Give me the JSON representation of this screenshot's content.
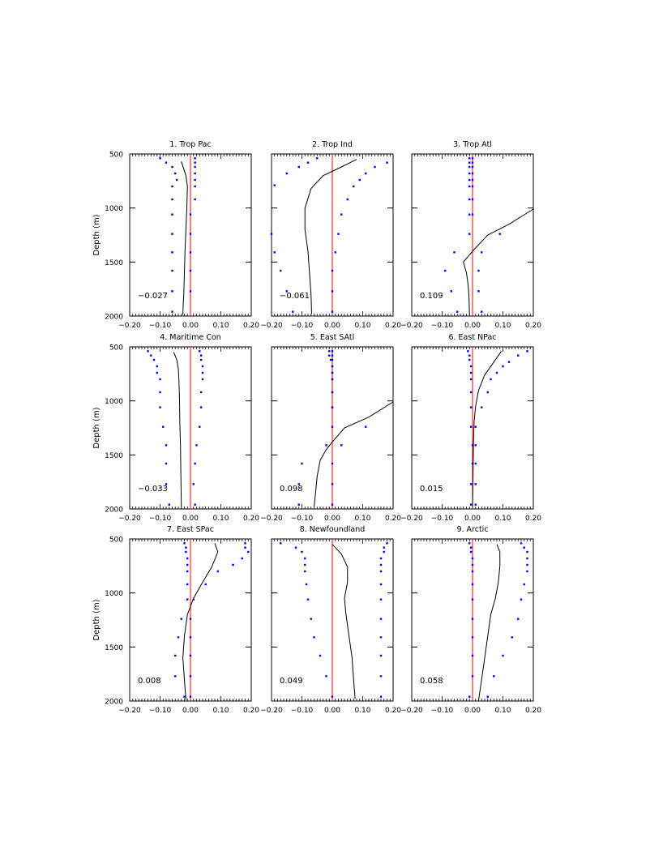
{
  "chart_data": [
    {
      "type": "line",
      "title": "1. Trop Pac",
      "ylabel": "Depth (m)",
      "ylim": [
        500,
        2000
      ],
      "xlim": [
        -0.2,
        0.2
      ],
      "xticks": [
        "−0.20",
        "−0.10",
        "0.00",
        "0.10",
        "0.20"
      ],
      "yticks": [
        "500",
        "1000",
        "1500",
        "2000"
      ],
      "annotation": "−0.027",
      "line": {
        "x": [
          -0.03,
          -0.015,
          -0.01,
          -0.012,
          -0.015,
          -0.018,
          -0.02,
          -0.022,
          -0.024,
          -0.025
        ],
        "y": [
          570,
          700,
          800,
          1000,
          1200,
          1400,
          1600,
          1800,
          1900,
          1990
        ]
      },
      "dots_left": {
        "x": [
          -0.1,
          -0.08,
          -0.06,
          -0.05,
          -0.045,
          -0.06,
          -0.06,
          -0.06,
          -0.06,
          -0.06,
          -0.06,
          -0.06,
          -0.06
        ],
        "y": [
          540,
          580,
          620,
          680,
          740,
          800,
          920,
          1060,
          1240,
          1410,
          1580,
          1770,
          1960
        ]
      },
      "dots_right": {
        "x": [
          0.015,
          0.015,
          0.015,
          0.015,
          0.015,
          0.015,
          0.015,
          0.0,
          0.0,
          0.0,
          0.0,
          0.0
        ],
        "y": [
          540,
          580,
          620,
          680,
          740,
          800,
          920,
          1060,
          1240,
          1410,
          1580,
          1770
        ]
      }
    },
    {
      "type": "line",
      "title": "2. Trop Ind",
      "ylabel": "",
      "ylim": [
        500,
        2000
      ],
      "xlim": [
        -0.2,
        0.2
      ],
      "xticks": [
        "−0.20",
        "−0.10",
        "0.00",
        "0.10",
        "0.20"
      ],
      "yticks": [
        "500",
        "1000",
        "1500",
        "2000"
      ],
      "annotation": "−0.061",
      "line": {
        "x": [
          0.08,
          0.03,
          -0.03,
          -0.07,
          -0.09,
          -0.09,
          -0.08,
          -0.075,
          -0.07,
          -0.068
        ],
        "y": [
          550,
          620,
          700,
          820,
          1000,
          1200,
          1400,
          1600,
          1800,
          1980
        ]
      },
      "dots_left": {
        "x": [
          -0.05,
          -0.08,
          -0.11,
          -0.15,
          -0.19,
          -0.2,
          -0.19,
          -0.17,
          -0.15,
          -0.13
        ],
        "y": [
          540,
          580,
          620,
          680,
          790,
          1240,
          1410,
          1580,
          1770,
          1960
        ]
      },
      "dots_right": {
        "x": [
          0.18,
          0.14,
          0.11,
          0.09,
          0.07,
          0.05,
          0.03,
          0.02,
          0.01,
          0.0,
          0.0,
          0.0
        ],
        "y": [
          580,
          620,
          680,
          740,
          800,
          920,
          1060,
          1240,
          1410,
          1580,
          1770,
          1960
        ]
      }
    },
    {
      "type": "line",
      "title": "3. Trop Atl",
      "ylabel": "",
      "ylim": [
        500,
        2000
      ],
      "xlim": [
        -0.2,
        0.2
      ],
      "xticks": [
        "−0.20",
        "−0.10",
        "0.00",
        "0.10",
        "0.20"
      ],
      "yticks": [
        "500",
        "1000",
        "1500",
        "2000"
      ],
      "annotation": "0.109",
      "line": {
        "x": [
          0.2,
          0.12,
          0.05,
          0.0,
          -0.03,
          -0.02,
          -0.015,
          -0.012,
          -0.01
        ],
        "y": [
          1010,
          1150,
          1250,
          1400,
          1500,
          1600,
          1700,
          1800,
          1990
        ]
      },
      "dots_left": {
        "x": [
          -0.01,
          -0.01,
          -0.01,
          -0.01,
          -0.01,
          -0.01,
          -0.01,
          -0.01,
          -0.01,
          -0.06,
          -0.09,
          -0.07,
          -0.05
        ],
        "y": [
          540,
          580,
          620,
          680,
          740,
          800,
          920,
          1060,
          1240,
          1410,
          1580,
          1770,
          1960
        ]
      },
      "dots_right": {
        "x": [
          0.0,
          0.0,
          0.0,
          0.0,
          0.0,
          0.0,
          0.0,
          0.0,
          0.09,
          0.03,
          0.02,
          0.02,
          0.03
        ],
        "y": [
          540,
          580,
          620,
          680,
          740,
          800,
          920,
          1060,
          1240,
          1410,
          1580,
          1770,
          1960
        ]
      }
    },
    {
      "type": "line",
      "title": "4. Maritime Con",
      "ylabel": "Depth (m)",
      "ylim": [
        500,
        2000
      ],
      "xlim": [
        -0.2,
        0.2
      ],
      "xticks": [
        "−0.20",
        "−0.10",
        "0.00",
        "0.10",
        "0.20"
      ],
      "yticks": [
        "500",
        "1000",
        "1500",
        "2000"
      ],
      "annotation": "−0.033",
      "line": {
        "x": [
          -0.055,
          -0.045,
          -0.04,
          -0.038,
          -0.036,
          -0.035,
          -0.033,
          -0.032,
          -0.031,
          -0.03
        ],
        "y": [
          550,
          620,
          700,
          800,
          1000,
          1200,
          1400,
          1600,
          1800,
          1980
        ]
      },
      "dots_left": {
        "x": [
          -0.14,
          -0.13,
          -0.12,
          -0.11,
          -0.11,
          -0.1,
          -0.1,
          -0.1,
          -0.09,
          -0.08,
          -0.08,
          -0.08,
          -0.07
        ],
        "y": [
          540,
          580,
          620,
          680,
          740,
          800,
          920,
          1060,
          1240,
          1410,
          1580,
          1770,
          1960
        ]
      },
      "dots_right": {
        "x": [
          0.03,
          0.035,
          0.035,
          0.04,
          0.04,
          0.04,
          0.035,
          0.035,
          0.03,
          0.02,
          0.015,
          0.01,
          0.015
        ],
        "y": [
          540,
          580,
          620,
          680,
          740,
          800,
          920,
          1060,
          1240,
          1410,
          1580,
          1770,
          1960
        ]
      }
    },
    {
      "type": "line",
      "title": "5. East SAtl",
      "ylabel": "",
      "ylim": [
        500,
        2000
      ],
      "xlim": [
        -0.2,
        0.2
      ],
      "xticks": [
        "−0.20",
        "−0.10",
        "0.00",
        "0.10",
        "0.20"
      ],
      "yticks": [
        "500",
        "1000",
        "1500",
        "2000"
      ],
      "annotation": "0.098",
      "line": {
        "x": [
          0.2,
          0.12,
          0.04,
          0.0,
          -0.02,
          -0.04,
          -0.05,
          -0.055,
          -0.06
        ],
        "y": [
          1010,
          1150,
          1250,
          1380,
          1450,
          1550,
          1700,
          1850,
          1980
        ]
      },
      "dots_left": {
        "x": [
          -0.01,
          -0.01,
          -0.005,
          0.0,
          0.0,
          0.0,
          0.0,
          0.0,
          0.0,
          -0.02,
          -0.1,
          -0.11,
          -0.11
        ],
        "y": [
          540,
          580,
          620,
          680,
          740,
          800,
          920,
          1060,
          1240,
          1410,
          1580,
          1770,
          1960
        ]
      },
      "dots_right": {
        "x": [
          0.0,
          0.0,
          0.0,
          0.0,
          0.0,
          0.0,
          0.0,
          0.0,
          0.11,
          0.03,
          0.0,
          0.0,
          0.0
        ],
        "y": [
          540,
          580,
          620,
          680,
          740,
          800,
          920,
          1060,
          1240,
          1410,
          1580,
          1770,
          1960
        ]
      }
    },
    {
      "type": "line",
      "title": "6. East NPac",
      "ylabel": "",
      "ylim": [
        500,
        2000
      ],
      "xlim": [
        -0.2,
        0.2
      ],
      "xticks": [
        "−0.20",
        "−0.10",
        "0.00",
        "0.10",
        "0.20"
      ],
      "yticks": [
        "500",
        "1000",
        "1500",
        "2000"
      ],
      "annotation": "0.015",
      "line": {
        "x": [
          0.095,
          0.07,
          0.04,
          0.02,
          0.01,
          0.005,
          0.003,
          0.002,
          0.001,
          0.0
        ],
        "y": [
          540,
          640,
          760,
          900,
          1050,
          1200,
          1400,
          1600,
          1800,
          1990
        ]
      },
      "dots_left": {
        "x": [
          -0.015,
          -0.01,
          -0.01,
          -0.005,
          -0.005,
          -0.005,
          -0.005,
          -0.005,
          -0.005,
          0.0,
          0.0,
          -0.005,
          -0.005
        ],
        "y": [
          540,
          580,
          620,
          680,
          740,
          800,
          920,
          1060,
          1240,
          1410,
          1580,
          1770,
          1960
        ]
      },
      "dots_right": {
        "x": [
          0.18,
          0.15,
          0.12,
          0.1,
          0.08,
          0.06,
          0.05,
          0.03,
          0.01,
          0.01,
          0.01,
          0.01,
          0.01
        ],
        "y": [
          540,
          580,
          640,
          680,
          740,
          800,
          920,
          1060,
          1240,
          1410,
          1580,
          1770,
          1960
        ]
      }
    },
    {
      "type": "line",
      "title": "7. East SPac",
      "ylabel": "Depth (m)",
      "ylim": [
        500,
        2000
      ],
      "xlim": [
        -0.2,
        0.2
      ],
      "xticks": [
        "−0.20",
        "−0.10",
        "0.00",
        "0.10",
        "0.20"
      ],
      "yticks": [
        "500",
        "1000",
        "1500",
        "2000"
      ],
      "annotation": "0.008",
      "line": {
        "x": [
          0.08,
          0.09,
          0.07,
          0.04,
          0.01,
          -0.01,
          -0.02,
          -0.025,
          -0.02,
          -0.015
        ],
        "y": [
          540,
          620,
          760,
          900,
          1050,
          1200,
          1400,
          1600,
          1800,
          1990
        ]
      },
      "dots_left": {
        "x": [
          -0.02,
          -0.015,
          -0.015,
          -0.01,
          -0.01,
          -0.01,
          -0.01,
          -0.01,
          -0.03,
          -0.04,
          -0.05,
          -0.05,
          -0.02
        ],
        "y": [
          540,
          580,
          620,
          680,
          740,
          800,
          920,
          1060,
          1240,
          1410,
          1580,
          1770,
          1960
        ]
      },
      "dots_right": {
        "x": [
          0.18,
          0.18,
          0.19,
          0.17,
          0.14,
          0.09,
          0.05,
          0.01,
          0.0,
          0.0,
          0.0,
          0.0,
          0.0
        ],
        "y": [
          540,
          580,
          620,
          680,
          740,
          800,
          920,
          1060,
          1240,
          1410,
          1580,
          1770,
          1960
        ]
      }
    },
    {
      "type": "line",
      "title": "8. Newfoundland",
      "ylabel": "",
      "ylim": [
        500,
        2000
      ],
      "xlim": [
        -0.2,
        0.2
      ],
      "xticks": [
        "−0.20",
        "−0.10",
        "0.00",
        "0.10",
        "0.20"
      ],
      "yticks": [
        "500",
        "1000",
        "1500",
        "2000"
      ],
      "annotation": "0.049",
      "line": {
        "x": [
          0.0,
          0.03,
          0.05,
          0.05,
          0.04,
          0.045,
          0.055,
          0.065,
          0.07,
          0.075
        ],
        "y": [
          550,
          640,
          760,
          900,
          1050,
          1200,
          1400,
          1600,
          1800,
          1980
        ]
      },
      "dots_left": {
        "x": [
          -0.17,
          -0.12,
          -0.1,
          -0.09,
          -0.09,
          -0.09,
          -0.085,
          -0.08,
          -0.07,
          -0.06,
          -0.04,
          -0.02,
          0.0
        ],
        "y": [
          540,
          580,
          620,
          680,
          740,
          800,
          920,
          1060,
          1240,
          1410,
          1580,
          1770,
          1960
        ]
      },
      "dots_right": {
        "x": [
          0.18,
          0.17,
          0.17,
          0.16,
          0.16,
          0.16,
          0.16,
          0.16,
          0.16,
          0.16,
          0.16,
          0.16,
          0.16
        ],
        "y": [
          540,
          580,
          620,
          680,
          740,
          800,
          920,
          1060,
          1240,
          1410,
          1580,
          1770,
          1960
        ]
      }
    },
    {
      "type": "line",
      "title": "9. Arctic",
      "ylabel": "",
      "ylim": [
        500,
        2000
      ],
      "xlim": [
        -0.2,
        0.2
      ],
      "xticks": [
        "−0.20",
        "−0.10",
        "0.00",
        "0.10",
        "0.20"
      ],
      "yticks": [
        "500",
        "1000",
        "1500",
        "2000"
      ],
      "annotation": "0.058",
      "line": {
        "x": [
          0.08,
          0.09,
          0.09,
          0.085,
          0.075,
          0.06,
          0.05,
          0.04,
          0.03,
          0.02
        ],
        "y": [
          550,
          620,
          750,
          900,
          1050,
          1200,
          1400,
          1600,
          1800,
          1990
        ]
      },
      "dots_left": {
        "x": [
          -0.01,
          -0.005,
          -0.005,
          0.0,
          0.0,
          0.0,
          0.0,
          0.0,
          0.0,
          0.0,
          0.0,
          0.0,
          -0.01
        ],
        "y": [
          540,
          580,
          620,
          680,
          740,
          800,
          920,
          1060,
          1240,
          1410,
          1580,
          1770,
          1960
        ]
      },
      "dots_right": {
        "x": [
          0.16,
          0.17,
          0.18,
          0.18,
          0.18,
          0.18,
          0.17,
          0.16,
          0.15,
          0.13,
          0.1,
          0.07,
          0.05
        ],
        "y": [
          540,
          580,
          620,
          680,
          740,
          800,
          920,
          1060,
          1240,
          1410,
          1580,
          1770,
          1960
        ]
      }
    }
  ],
  "colors": {
    "line": "#000000",
    "zero_line": "#ff0000",
    "dots": "#0000ff"
  }
}
